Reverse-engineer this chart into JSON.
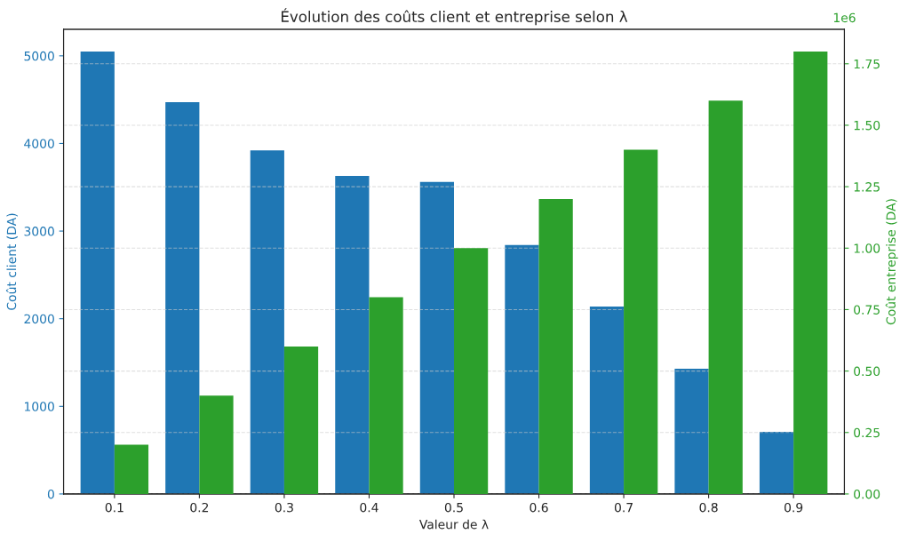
{
  "chart_data": {
    "type": "bar",
    "title": "Évolution des coûts client et entreprise selon λ",
    "xlabel": "Valeur de λ",
    "ylabel": "Coût client (DA)",
    "y2label": "Coût entreprise (DA)",
    "categories": [
      "0.1",
      "0.2",
      "0.3",
      "0.4",
      "0.5",
      "0.6",
      "0.7",
      "0.8",
      "0.9"
    ],
    "series": [
      {
        "name": null,
        "color": "#1f77b4",
        "values": [
          5050,
          4470,
          3920,
          3630,
          3560,
          2840,
          2140,
          1430,
          710
        ]
      },
      {
        "name": null,
        "color": "#2ca02c",
        "axis": "y2",
        "values": [
          0.2,
          0.4,
          0.6,
          0.8,
          1.0,
          1.2,
          1.4,
          1.6,
          1.8
        ]
      }
    ],
    "ylim": [
      0,
      5302
    ],
    "yticks": [
      0,
      1000,
      2000,
      3000,
      4000,
      5000
    ],
    "y2lim": [
      0,
      1.89
    ],
    "y2ticks": [
      {
        "value": 0,
        "label": "0.00"
      },
      0.25,
      {
        "value": 0.5,
        "label": "0.50"
      },
      0.75,
      {
        "value": 1.0,
        "label": "1.00"
      },
      1.25,
      {
        "value": 1.5,
        "label": "1.50"
      },
      1.75
    ],
    "annotations": [
      "1e6"
    ],
    "grid": "y2",
    "legend": false
  }
}
